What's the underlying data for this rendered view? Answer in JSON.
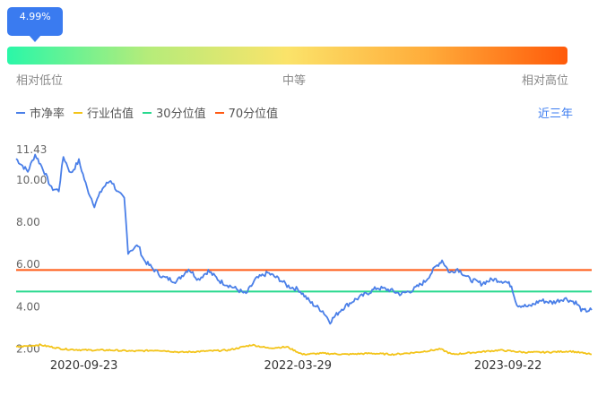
{
  "percentile": {
    "label": "4.99%",
    "value": 4.99,
    "low_label": "相对低位",
    "mid_label": "中等",
    "high_label": "相对高位"
  },
  "legend": {
    "pb": "市净率",
    "industry": "行业估值",
    "p30": "30分位值",
    "p70": "70分位值"
  },
  "range_button": "近三年",
  "colors": {
    "pb": "#4a7fe8",
    "industry": "#f3c41a",
    "p30": "#2ad98f",
    "p70": "#ff5a14",
    "accent": "#3a7bf0"
  },
  "chart_data": {
    "type": "line",
    "ylim": [
      1.9,
      11.6
    ],
    "y_ticks": [
      {
        "value": 2.0,
        "label": "2.00"
      },
      {
        "value": 4.0,
        "label": "4.00"
      },
      {
        "value": 6.0,
        "label": "6.00"
      },
      {
        "value": 8.0,
        "label": "8.00"
      },
      {
        "value": 10.0,
        "label": "10.00"
      },
      {
        "value": 11.43,
        "label": "11.43"
      }
    ],
    "x_ticks": [
      "2020-09-23",
      "2022-03-29",
      "2023-09-22"
    ],
    "x_range": [
      "2020-04-01",
      "2024-04-25"
    ],
    "reference_lines": [
      {
        "name": "30分位值",
        "value": 4.72
      },
      {
        "name": "70分位值",
        "value": 5.74
      }
    ],
    "series": [
      {
        "name": "市净率",
        "points": [
          [
            "2020-04-01",
            11.0
          ],
          [
            "2020-05-01",
            10.4
          ],
          [
            "2020-05-20",
            11.2
          ],
          [
            "2020-06-10",
            10.5
          ],
          [
            "2020-07-01",
            9.6
          ],
          [
            "2020-07-20",
            9.5
          ],
          [
            "2020-08-01",
            11.1
          ],
          [
            "2020-08-20",
            10.3
          ],
          [
            "2020-09-10",
            10.9
          ],
          [
            "2020-10-01",
            9.6
          ],
          [
            "2020-10-20",
            8.8
          ],
          [
            "2020-11-10",
            9.6
          ],
          [
            "2020-12-01",
            10.0
          ],
          [
            "2020-12-20",
            9.4
          ],
          [
            "2021-01-05",
            9.1
          ],
          [
            "2021-01-15",
            6.6
          ],
          [
            "2021-02-10",
            6.9
          ],
          [
            "2021-02-25",
            6.2
          ],
          [
            "2021-03-20",
            5.8
          ],
          [
            "2021-04-15",
            5.4
          ],
          [
            "2021-05-20",
            5.2
          ],
          [
            "2021-06-20",
            5.8
          ],
          [
            "2021-07-15",
            5.3
          ],
          [
            "2021-08-10",
            5.7
          ],
          [
            "2021-09-10",
            5.2
          ],
          [
            "2021-10-15",
            4.9
          ],
          [
            "2021-11-15",
            4.6
          ],
          [
            "2021-12-10",
            5.3
          ],
          [
            "2022-01-10",
            5.6
          ],
          [
            "2022-02-10",
            5.3
          ],
          [
            "2022-03-01",
            5.0
          ],
          [
            "2022-04-01",
            4.8
          ],
          [
            "2022-05-01",
            4.2
          ],
          [
            "2022-06-01",
            3.8
          ],
          [
            "2022-06-20",
            3.3
          ],
          [
            "2022-07-20",
            3.9
          ],
          [
            "2022-08-20",
            4.3
          ],
          [
            "2022-09-20",
            4.6
          ],
          [
            "2022-10-20",
            4.9
          ],
          [
            "2022-11-20",
            4.8
          ],
          [
            "2022-12-20",
            4.6
          ],
          [
            "2023-01-20",
            4.8
          ],
          [
            "2023-02-20",
            5.2
          ],
          [
            "2023-03-20",
            5.9
          ],
          [
            "2023-04-05",
            6.2
          ],
          [
            "2023-04-25",
            5.6
          ],
          [
            "2023-05-15",
            5.8
          ],
          [
            "2023-06-15",
            5.3
          ],
          [
            "2023-07-15",
            5.1
          ],
          [
            "2023-08-15",
            5.3
          ],
          [
            "2023-09-15",
            5.2
          ],
          [
            "2023-10-01",
            5.0
          ],
          [
            "2023-10-15",
            4.1
          ],
          [
            "2023-11-15",
            4.0
          ],
          [
            "2023-12-15",
            4.3
          ],
          [
            "2024-01-15",
            4.2
          ],
          [
            "2024-02-15",
            4.4
          ],
          [
            "2024-03-15",
            4.2
          ],
          [
            "2024-04-01",
            3.8
          ],
          [
            "2024-04-25",
            3.85
          ]
        ]
      },
      {
        "name": "行业估值",
        "points": [
          [
            "2020-04-01",
            2.1
          ],
          [
            "2020-06-01",
            2.2
          ],
          [
            "2020-08-01",
            2.0
          ],
          [
            "2020-10-01",
            1.95
          ],
          [
            "2020-12-01",
            1.95
          ],
          [
            "2021-02-01",
            1.9
          ],
          [
            "2021-04-01",
            1.95
          ],
          [
            "2021-06-01",
            1.85
          ],
          [
            "2021-08-01",
            1.9
          ],
          [
            "2021-10-01",
            1.95
          ],
          [
            "2021-12-01",
            2.2
          ],
          [
            "2022-01-10",
            2.05
          ],
          [
            "2022-03-01",
            2.1
          ],
          [
            "2022-04-10",
            1.75
          ],
          [
            "2022-06-01",
            1.8
          ],
          [
            "2022-08-01",
            1.75
          ],
          [
            "2022-10-01",
            1.8
          ],
          [
            "2022-12-01",
            1.75
          ],
          [
            "2023-02-01",
            1.85
          ],
          [
            "2023-04-01",
            2.0
          ],
          [
            "2023-05-01",
            1.75
          ],
          [
            "2023-07-01",
            1.85
          ],
          [
            "2023-09-01",
            1.95
          ],
          [
            "2023-11-01",
            1.85
          ],
          [
            "2024-01-01",
            1.85
          ],
          [
            "2024-03-01",
            1.9
          ],
          [
            "2024-04-25",
            1.75
          ]
        ]
      }
    ]
  }
}
